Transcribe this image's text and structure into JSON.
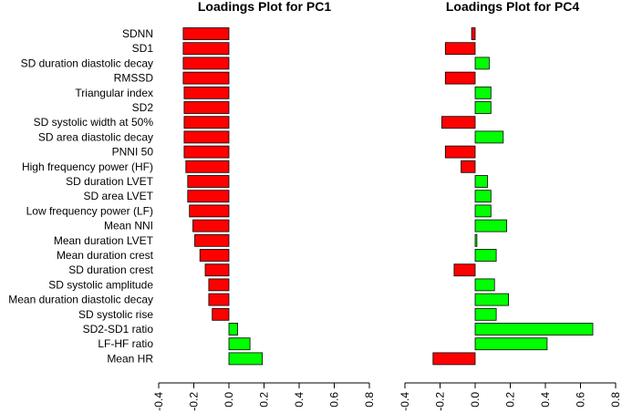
{
  "colors": {
    "negative": "#ff0000",
    "positive": "#00ff00",
    "outline": "#000000"
  },
  "chart_data": [
    {
      "type": "bar",
      "orientation": "horizontal",
      "title": "Loadings Plot for PC1",
      "xlim": [
        -0.4,
        0.8
      ],
      "xticks": [
        "-0.4",
        "-0.2",
        "0.0",
        "0.2",
        "0.4",
        "0.6",
        "0.8"
      ],
      "categories": [
        "SDNN",
        "SD1",
        "SD duration diastolic decay",
        "RMSSD",
        "Triangular index",
        "SD2",
        "SD systolic width at 50%",
        "SD area diastolic decay",
        "PNNI 50",
        "High frequency power (HF)",
        "SD duration LVET",
        "SD area LVET",
        "Low frequency power (LF)",
        "Mean NNI",
        "Mean duration LVET",
        "Mean duration crest",
        "SD duration crest",
        "SD systolic amplitude",
        "Mean duration diastolic decay",
        "SD systolic rise",
        "SD2-SD1 ratio",
        "LF-HF ratio",
        "Mean HR"
      ],
      "values": [
        -0.26,
        -0.26,
        -0.26,
        -0.26,
        -0.255,
        -0.255,
        -0.255,
        -0.255,
        -0.255,
        -0.245,
        -0.235,
        -0.235,
        -0.225,
        -0.205,
        -0.195,
        -0.165,
        -0.135,
        -0.115,
        -0.115,
        -0.095,
        0.05,
        0.12,
        0.19
      ]
    },
    {
      "type": "bar",
      "orientation": "horizontal",
      "title": "Loadings Plot for PC4",
      "xlim": [
        -0.4,
        0.8
      ],
      "xticks": [
        "-0.4",
        "-0.2",
        "0.0",
        "0.2",
        "0.4",
        "0.6",
        "0.8"
      ],
      "categories": [
        "SDNN",
        "SD1",
        "SD duration diastolic decay",
        "RMSSD",
        "Triangular index",
        "SD2",
        "SD systolic width at 50%",
        "SD area diastolic decay",
        "PNNI 50",
        "High frequency power (HF)",
        "SD duration LVET",
        "SD area LVET",
        "Low frequency power (LF)",
        "Mean NNI",
        "Mean duration LVET",
        "Mean duration crest",
        "SD duration crest",
        "SD systolic amplitude",
        "Mean duration diastolic decay",
        "SD systolic rise",
        "SD2-SD1 ratio",
        "LF-HF ratio",
        "Mean HR"
      ],
      "values": [
        -0.02,
        -0.17,
        0.08,
        -0.17,
        0.09,
        0.09,
        -0.19,
        0.16,
        -0.17,
        -0.08,
        0.07,
        0.09,
        0.09,
        0.18,
        0.01,
        0.12,
        -0.12,
        0.11,
        0.19,
        0.12,
        0.67,
        0.41,
        -0.24
      ]
    }
  ]
}
